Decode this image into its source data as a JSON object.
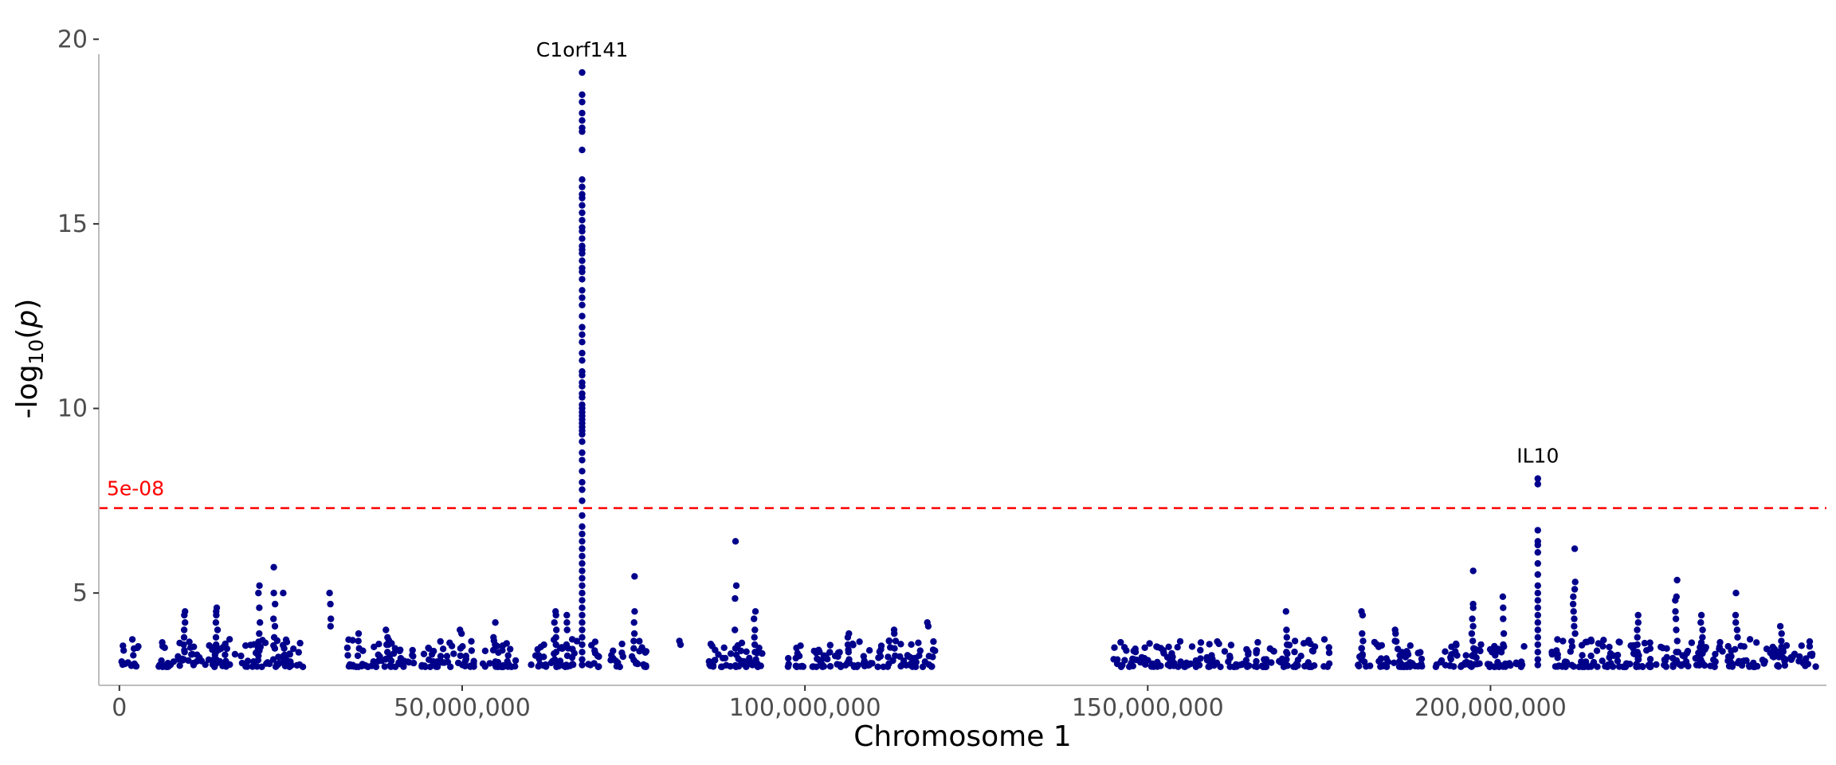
{
  "chart_data": {
    "type": "scatter",
    "title": "",
    "xlabel": "Chromosome 1",
    "ylabel_parts": {
      "prefix": "-log",
      "sub": "10",
      "suffix": "(",
      "italic": "p",
      "close": ")"
    },
    "xlim": [
      -3000000,
      249000000
    ],
    "ylim": [
      2.5,
      20.2
    ],
    "x_ticks": [
      0,
      50000000,
      100000000,
      150000000,
      200000000
    ],
    "x_tick_labels": [
      "0",
      "50,000,000",
      "100,000,000",
      "150,000,000",
      "200,000,000"
    ],
    "y_ticks": [
      5,
      10,
      15,
      20
    ],
    "y_tick_labels": [
      "5",
      "10",
      "15",
      "20"
    ],
    "point_color": "#00008b",
    "threshold": {
      "value": 7.30103,
      "label": "5e-08",
      "color": "#ff0000"
    },
    "annotations": [
      {
        "label": "C1orf141",
        "x": 67500000,
        "y": 19.1
      },
      {
        "label": "IL10",
        "x": 206900000,
        "y": 8.1
      }
    ],
    "peaks": [
      {
        "x": 67500000,
        "values": [
          19.1,
          18.5,
          18.3,
          18.0,
          17.8,
          17.6,
          17.5,
          17.0,
          16.2,
          16.0,
          15.8,
          15.7,
          15.5,
          15.3,
          15.1,
          14.9,
          14.8,
          14.6,
          14.4,
          14.3,
          14.2,
          14.0,
          13.8,
          13.7,
          13.5,
          13.2,
          13.0,
          12.8,
          12.5,
          12.2,
          12.0,
          11.8,
          11.5,
          11.3,
          11.0,
          10.9,
          10.7,
          10.6,
          10.4,
          10.3,
          10.1,
          10.0,
          9.9,
          9.8,
          9.7,
          9.6,
          9.5,
          9.4,
          9.3,
          9.1,
          8.8,
          8.6,
          8.3,
          8.0,
          7.8,
          7.5,
          7.1,
          6.8,
          6.6,
          6.4,
          6.2,
          6.0,
          5.8,
          5.6,
          5.4,
          5.2,
          5.0,
          4.8,
          4.6,
          4.4,
          4.2,
          4.0,
          3.8,
          3.6,
          3.4,
          3.2,
          3.05
        ]
      },
      {
        "x": 206900000,
        "values": [
          8.1,
          7.95,
          6.7,
          6.4,
          6.3,
          6.1,
          5.8,
          5.5,
          5.2,
          5.0,
          4.8,
          4.6,
          4.4,
          4.2,
          4.0,
          3.8,
          3.6,
          3.4,
          3.2,
          3.05
        ]
      }
    ],
    "columns": [
      {
        "x": 9500000,
        "values": [
          4.5,
          4.4,
          4.2,
          4.0,
          3.8,
          3.6,
          3.4,
          3.2
        ]
      },
      {
        "x": 14200000,
        "values": [
          4.6,
          4.5,
          4.4,
          4.2,
          4.0,
          3.8,
          3.6,
          3.4,
          3.2
        ]
      },
      {
        "x": 20400000,
        "values": [
          5.2,
          5.0,
          4.6,
          4.2,
          3.9,
          3.6,
          3.3
        ]
      },
      {
        "x": 22600000,
        "values": [
          5.7,
          5.0,
          4.7,
          4.3,
          4.1,
          3.8,
          3.5,
          3.2
        ]
      },
      {
        "x": 24000000,
        "values": [
          5.0,
          3.5,
          3.3,
          3.2
        ]
      },
      {
        "x": 30700000,
        "values": [
          5.0,
          4.7,
          4.3,
          4.1
        ]
      },
      {
        "x": 34900000,
        "values": [
          3.9,
          3.7,
          3.5,
          3.3
        ]
      },
      {
        "x": 39000000,
        "values": [
          4.0,
          3.8,
          3.6,
          3.4
        ]
      },
      {
        "x": 49800000,
        "values": [
          4.0,
          3.9,
          3.5,
          3.3
        ]
      },
      {
        "x": 54700000,
        "values": [
          4.2,
          3.8,
          3.6
        ]
      },
      {
        "x": 63600000,
        "values": [
          4.5,
          4.4,
          4.2,
          4.0,
          3.8,
          3.6,
          3.4,
          3.2
        ]
      },
      {
        "x": 65200000,
        "values": [
          4.4,
          4.2,
          4.0,
          3.6,
          3.3
        ]
      },
      {
        "x": 75100000,
        "values": [
          5.45,
          4.5,
          4.2,
          3.9,
          3.7,
          3.5
        ]
      },
      {
        "x": 81800000,
        "values": [
          3.7,
          3.6
        ]
      },
      {
        "x": 89900000,
        "values": [
          6.4,
          5.2,
          4.85,
          4.0,
          3.5
        ]
      },
      {
        "x": 92700000,
        "values": [
          4.5,
          4.3,
          4.0,
          3.8,
          3.6,
          3.4,
          3.2
        ]
      },
      {
        "x": 106400000,
        "values": [
          3.9,
          3.8,
          3.6,
          3.4,
          3.2
        ]
      },
      {
        "x": 113100000,
        "values": [
          4.0,
          3.9,
          3.7,
          3.5,
          3.3
        ]
      },
      {
        "x": 118000000,
        "values": [
          4.2,
          4.1
        ]
      },
      {
        "x": 170200000,
        "values": [
          4.5,
          4.0,
          3.8,
          3.6,
          3.4,
          3.2
        ]
      },
      {
        "x": 181300000,
        "values": [
          4.5,
          4.4,
          3.9,
          3.7,
          3.5,
          3.3
        ]
      },
      {
        "x": 186000000,
        "values": [
          4.0,
          3.9,
          3.7
        ]
      },
      {
        "x": 197400000,
        "values": [
          5.6,
          4.7,
          4.6,
          4.3,
          4.1,
          3.9,
          3.7,
          3.5,
          3.3
        ]
      },
      {
        "x": 201800000,
        "values": [
          4.9,
          4.6,
          4.3,
          3.9,
          3.6
        ]
      },
      {
        "x": 212200000,
        "values": [
          6.2,
          5.3,
          5.1,
          4.9,
          4.7,
          4.5,
          4.3,
          4.1,
          3.9
        ]
      },
      {
        "x": 221500000,
        "values": [
          4.4,
          4.2,
          4.0,
          3.8,
          3.6,
          3.4,
          3.2
        ]
      },
      {
        "x": 227100000,
        "values": [
          5.35,
          4.9,
          4.8,
          4.5,
          4.3,
          4.0,
          3.7,
          3.4
        ]
      },
      {
        "x": 230800000,
        "values": [
          4.4,
          4.2,
          4.0,
          3.8,
          3.6,
          3.4
        ]
      },
      {
        "x": 235900000,
        "values": [
          5.0,
          4.4,
          4.2,
          4.0,
          3.8
        ]
      },
      {
        "x": 242400000,
        "values": [
          4.1,
          3.9,
          3.7
        ]
      }
    ],
    "clusters": [
      [
        0,
        3000000
      ],
      [
        5000000,
        8000000
      ],
      [
        8500000,
        12000000
      ],
      [
        12500000,
        17000000
      ],
      [
        17500000,
        27000000
      ],
      [
        33000000,
        43000000
      ],
      [
        44000000,
        52000000
      ],
      [
        53000000,
        58000000
      ],
      [
        60000000,
        66800000
      ],
      [
        68000000,
        70000000
      ],
      [
        71500000,
        73500000
      ],
      [
        74500000,
        77000000
      ],
      [
        86000000,
        94000000
      ],
      [
        97500000,
        100000000
      ],
      [
        101000000,
        110000000
      ],
      [
        110500000,
        119000000
      ],
      [
        145000000,
        150000000
      ],
      [
        150000000,
        158000000
      ],
      [
        158500000,
        165000000
      ],
      [
        165500000,
        175000000
      ],
      [
        175500000,
        176500000
      ],
      [
        180000000,
        190000000
      ],
      [
        192000000,
        200000000
      ],
      [
        200000000,
        205000000
      ],
      [
        208500000,
        216000000
      ],
      [
        216000000,
        226000000
      ],
      [
        226500000,
        234000000
      ],
      [
        234500000,
        242000000
      ],
      [
        242000000,
        247500000
      ]
    ]
  }
}
